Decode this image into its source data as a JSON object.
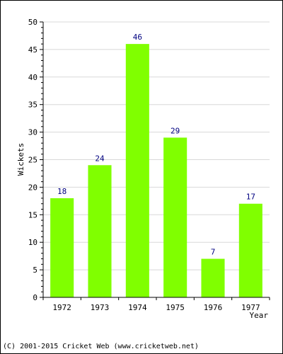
{
  "chart_data": {
    "type": "bar",
    "categories": [
      "1972",
      "1973",
      "1974",
      "1975",
      "1976",
      "1977"
    ],
    "values": [
      18,
      24,
      46,
      29,
      7,
      17
    ],
    "data_labels": [
      "18",
      "24",
      "46",
      "29",
      "7",
      "17"
    ],
    "title": "",
    "xlabel": "Year",
    "ylabel": "Wickets",
    "ylim": [
      0,
      50
    ],
    "y_ticks": [
      "0",
      "5",
      "10",
      "15",
      "20",
      "25",
      "30",
      "35",
      "40",
      "45",
      "50"
    ],
    "grid": true,
    "legend": "none",
    "colors": {
      "bar": "#80ff00",
      "data_label": "#000080",
      "grid": "#d8d8d8",
      "axis": "#000000"
    }
  },
  "footer": {
    "copyright": "(C) 2001-2015 Cricket Web (www.cricketweb.net)"
  }
}
